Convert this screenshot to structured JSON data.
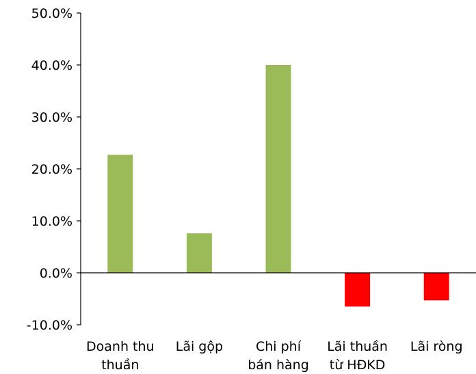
{
  "chart_data": {
    "type": "bar",
    "title": "",
    "xlabel": "",
    "ylabel": "",
    "ylim": [
      -10,
      50
    ],
    "ytick_values": [
      -10,
      0,
      10,
      20,
      30,
      40,
      50
    ],
    "ytick_labels": [
      "-10.0%",
      "0.0%",
      "10.0%",
      "20.0%",
      "30.0%",
      "40.0%",
      "50.0%"
    ],
    "categories": [
      [
        "Doanh thu",
        "thuần"
      ],
      [
        "Lãi gộp"
      ],
      [
        "Chi phí",
        "bán hàng"
      ],
      [
        "Lãi thuần",
        "từ HĐKD"
      ],
      [
        "Lãi ròng"
      ]
    ],
    "values": [
      22.7,
      7.6,
      40.0,
      -6.5,
      -5.3
    ],
    "positive_color": "#9BBB59",
    "negative_color": "#FF0000",
    "axis_color": "#000000",
    "grid": false,
    "legend": "none"
  }
}
